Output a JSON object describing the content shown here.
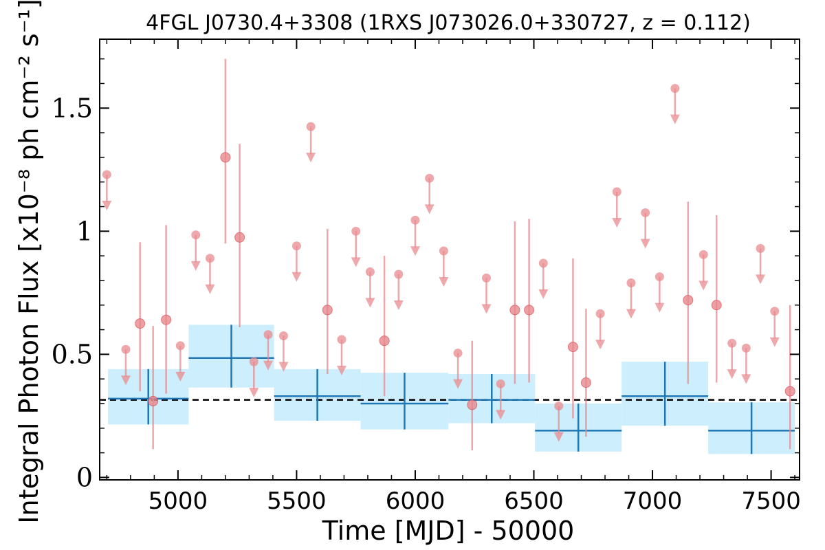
{
  "chart_data": {
    "type": "scatter",
    "title": "4FGL J0730.4+3308 (1RXS J073026.0+330727, z = 0.112)",
    "xlabel": "Time [MJD] - 50000",
    "ylabel": "Integral Photon Flux [x10⁻⁸ ph cm⁻² s⁻¹]",
    "xlim": [
      4670,
      7620
    ],
    "ylim": [
      -0.01,
      1.78
    ],
    "x_ticks": [
      5000,
      5500,
      6000,
      6500,
      7000,
      7500
    ],
    "x_tick_labels": [
      "5000",
      "5500",
      "6000",
      "6500",
      "7000",
      "7500"
    ],
    "y_ticks": [
      0,
      0.5,
      1,
      1.5
    ],
    "y_tick_labels": [
      "0",
      "0.5",
      "1",
      "1.5"
    ],
    "mean_flux": 0.315,
    "colors": {
      "points": "#e8898d",
      "bins": "#1f77b4",
      "band": "#cdeefc",
      "mean": "#000000"
    },
    "upper_limits": [
      {
        "x": 4700,
        "y": 1.23
      },
      {
        "x": 4780,
        "y": 0.52
      },
      {
        "x": 5010,
        "y": 0.535
      },
      {
        "x": 5075,
        "y": 0.985
      },
      {
        "x": 5135,
        "y": 0.89
      },
      {
        "x": 5320,
        "y": 0.47
      },
      {
        "x": 5380,
        "y": 0.58
      },
      {
        "x": 5445,
        "y": 0.575
      },
      {
        "x": 5500,
        "y": 0.94
      },
      {
        "x": 5560,
        "y": 1.425
      },
      {
        "x": 5690,
        "y": 0.56
      },
      {
        "x": 5750,
        "y": 1.0
      },
      {
        "x": 5810,
        "y": 0.835
      },
      {
        "x": 5930,
        "y": 0.825
      },
      {
        "x": 6000,
        "y": 1.045
      },
      {
        "x": 6060,
        "y": 1.215
      },
      {
        "x": 6120,
        "y": 0.92
      },
      {
        "x": 6180,
        "y": 0.505
      },
      {
        "x": 6300,
        "y": 0.81
      },
      {
        "x": 6360,
        "y": 0.38
      },
      {
        "x": 6540,
        "y": 0.87
      },
      {
        "x": 6605,
        "y": 0.29
      },
      {
        "x": 6780,
        "y": 0.665
      },
      {
        "x": 6850,
        "y": 1.16
      },
      {
        "x": 6910,
        "y": 0.79
      },
      {
        "x": 6970,
        "y": 1.075
      },
      {
        "x": 7030,
        "y": 0.815
      },
      {
        "x": 7095,
        "y": 1.58
      },
      {
        "x": 7215,
        "y": 0.905
      },
      {
        "x": 7335,
        "y": 0.545
      },
      {
        "x": 7395,
        "y": 0.525
      },
      {
        "x": 7455,
        "y": 0.93
      },
      {
        "x": 7515,
        "y": 0.675
      }
    ],
    "detections": [
      {
        "x": 4840,
        "y": 0.625,
        "lo": 0.35,
        "hi": 0.955
      },
      {
        "x": 4895,
        "y": 0.31,
        "lo": 0.115,
        "hi": 0.615
      },
      {
        "x": 4950,
        "y": 0.64,
        "lo": 0.34,
        "hi": 1.025
      },
      {
        "x": 5200,
        "y": 1.3,
        "lo": 0.95,
        "hi": 1.7
      },
      {
        "x": 5260,
        "y": 0.975,
        "lo": 0.61,
        "hi": 1.355
      },
      {
        "x": 5630,
        "y": 0.68,
        "lo": 0.42,
        "hi": 1.01
      },
      {
        "x": 5870,
        "y": 0.555,
        "lo": 0.33,
        "hi": 0.9
      },
      {
        "x": 6240,
        "y": 0.295,
        "lo": 0.11,
        "hi": 0.555
      },
      {
        "x": 6420,
        "y": 0.68,
        "lo": 0.38,
        "hi": 1.04
      },
      {
        "x": 6480,
        "y": 0.68,
        "lo": 0.385,
        "hi": 1.05
      },
      {
        "x": 6665,
        "y": 0.53,
        "lo": 0.24,
        "hi": 0.89
      },
      {
        "x": 6720,
        "y": 0.385,
        "lo": 0.165,
        "hi": 0.685
      },
      {
        "x": 7150,
        "y": 0.72,
        "lo": 0.38,
        "hi": 1.12
      },
      {
        "x": 7270,
        "y": 0.7,
        "lo": 0.385,
        "hi": 1.065
      },
      {
        "x": 7580,
        "y": 0.35,
        "lo": 0.115,
        "hi": 0.7
      }
    ],
    "bins": [
      {
        "x0": 4705,
        "x1": 5045,
        "y": 0.32,
        "ylo": 0.215,
        "yhi": 0.44
      },
      {
        "x0": 5045,
        "x1": 5405,
        "y": 0.485,
        "ylo": 0.365,
        "yhi": 0.62
      },
      {
        "x0": 5405,
        "x1": 5770,
        "y": 0.33,
        "ylo": 0.23,
        "yhi": 0.44
      },
      {
        "x0": 5770,
        "x1": 6140,
        "y": 0.3,
        "ylo": 0.195,
        "yhi": 0.425
      },
      {
        "x0": 6140,
        "x1": 6505,
        "y": 0.315,
        "ylo": 0.22,
        "yhi": 0.42
      },
      {
        "x0": 6505,
        "x1": 6870,
        "y": 0.19,
        "ylo": 0.105,
        "yhi": 0.3
      },
      {
        "x0": 6870,
        "x1": 7235,
        "y": 0.33,
        "ylo": 0.21,
        "yhi": 0.47
      },
      {
        "x0": 7235,
        "x1": 7600,
        "y": 0.19,
        "ylo": 0.095,
        "yhi": 0.305
      }
    ]
  }
}
